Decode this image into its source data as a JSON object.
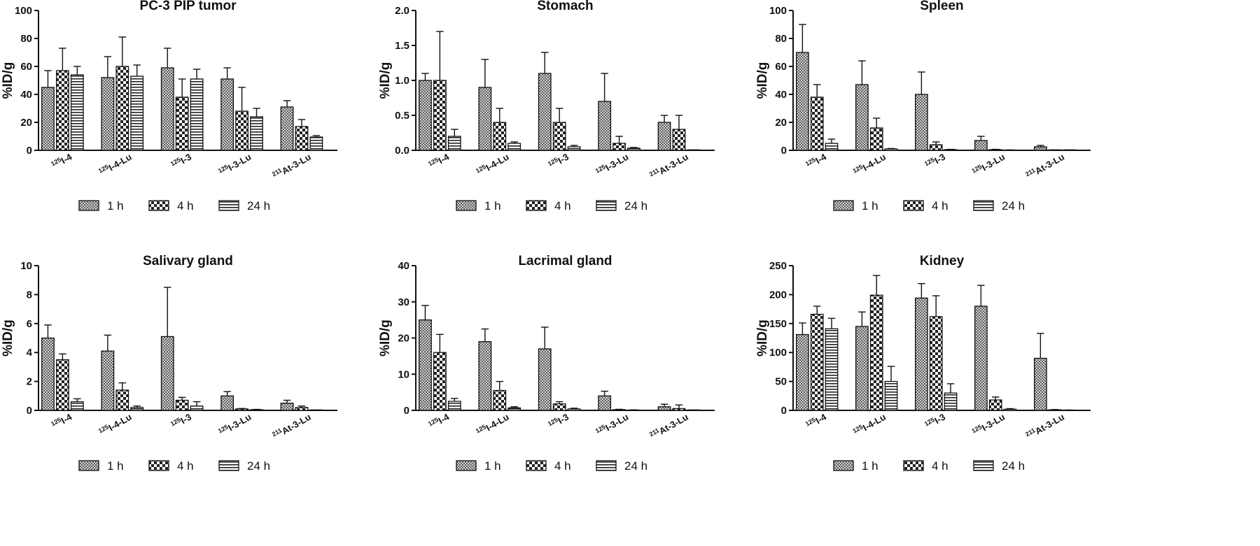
{
  "chart_data": [
    {
      "type": "bar",
      "title": "PC-3 PIP tumor",
      "ylabel": "%ID/g",
      "ylim": [
        0,
        100
      ],
      "yticks": [
        "0",
        "20",
        "40",
        "60",
        "80",
        "100"
      ],
      "categories": [
        {
          "sup": "125",
          "base": "I-4"
        },
        {
          "sup": "125",
          "base": "I-4-Lu"
        },
        {
          "sup": "125",
          "base": "I-3"
        },
        {
          "sup": "125",
          "base": "I-3-Lu"
        },
        {
          "sup": "211",
          "base": "At-3-Lu"
        }
      ],
      "series": [
        {
          "name": "1 h",
          "values": [
            45,
            52,
            59,
            51,
            31
          ],
          "errors": [
            12,
            15,
            14,
            8,
            4.5
          ]
        },
        {
          "name": "4 h",
          "values": [
            57,
            60,
            38,
            28,
            17
          ],
          "errors": [
            16,
            21,
            13,
            17,
            5
          ]
        },
        {
          "name": "24 h",
          "values": [
            54,
            53,
            51,
            24,
            9.5
          ],
          "errors": [
            6,
            8,
            7,
            6,
            1
          ]
        }
      ],
      "legend": "bottom"
    },
    {
      "type": "bar",
      "title": "Stomach",
      "ylabel": "%ID/g",
      "ylim": [
        0,
        2
      ],
      "yticks": [
        "0.0",
        "0.5",
        "1.0",
        "1.5",
        "2.0"
      ],
      "categories": [
        {
          "sup": "125",
          "base": "I-4"
        },
        {
          "sup": "125",
          "base": "I-4-Lu"
        },
        {
          "sup": "125",
          "base": "I-3"
        },
        {
          "sup": "125",
          "base": "I-3-Lu"
        },
        {
          "sup": "211",
          "base": "At-3-Lu"
        }
      ],
      "series": [
        {
          "name": "1 h",
          "values": [
            1.0,
            0.9,
            1.1,
            0.7,
            0.4
          ],
          "errors": [
            0.1,
            0.4,
            0.3,
            0.4,
            0.1
          ]
        },
        {
          "name": "4 h",
          "values": [
            1.0,
            0.4,
            0.4,
            0.1,
            0.3
          ],
          "errors": [
            0.7,
            0.2,
            0.2,
            0.1,
            0.2
          ]
        },
        {
          "name": "24 h",
          "values": [
            0.2,
            0.1,
            0.05,
            0.03,
            0
          ],
          "errors": [
            0.1,
            0.02,
            0.02,
            0.01,
            0
          ]
        }
      ],
      "legend": "bottom"
    },
    {
      "type": "bar",
      "title": "Spleen",
      "ylabel": "%ID/g",
      "ylim": [
        0,
        100
      ],
      "yticks": [
        "0",
        "20",
        "40",
        "60",
        "80",
        "100"
      ],
      "categories": [
        {
          "sup": "125",
          "base": "I-4"
        },
        {
          "sup": "125",
          "base": "I-4-Lu"
        },
        {
          "sup": "125",
          "base": "I-3"
        },
        {
          "sup": "125",
          "base": "I-3-Lu"
        },
        {
          "sup": "211",
          "base": "At-3-Lu"
        }
      ],
      "series": [
        {
          "name": "1 h",
          "values": [
            70,
            47,
            40,
            7,
            2.5
          ],
          "errors": [
            20,
            17,
            16,
            3,
            1
          ]
        },
        {
          "name": "4 h",
          "values": [
            38,
            16,
            4,
            0.5,
            0
          ],
          "errors": [
            9,
            7,
            2,
            0.2,
            0
          ]
        },
        {
          "name": "24 h",
          "values": [
            5,
            1,
            0.5,
            0.2,
            0
          ],
          "errors": [
            3,
            0.3,
            0.2,
            0.1,
            0
          ]
        }
      ],
      "legend": "bottom"
    },
    {
      "type": "bar",
      "title": "Salivary gland",
      "ylabel": "%ID/g",
      "ylim": [
        0,
        10
      ],
      "yticks": [
        "0",
        "2",
        "4",
        "6",
        "8",
        "10"
      ],
      "categories": [
        {
          "sup": "125",
          "base": "I-4"
        },
        {
          "sup": "125",
          "base": "I-4-Lu"
        },
        {
          "sup": "125",
          "base": "I-3"
        },
        {
          "sup": "125",
          "base": "I-3-Lu"
        },
        {
          "sup": "211",
          "base": "At-3-Lu"
        }
      ],
      "series": [
        {
          "name": "1 h",
          "values": [
            5.0,
            4.1,
            5.1,
            1.0,
            0.5
          ],
          "errors": [
            0.9,
            1.1,
            3.4,
            0.3,
            0.2
          ]
        },
        {
          "name": "4 h",
          "values": [
            3.5,
            1.4,
            0.7,
            0.1,
            0.2
          ],
          "errors": [
            0.4,
            0.5,
            0.2,
            0.03,
            0.1
          ]
        },
        {
          "name": "24 h",
          "values": [
            0.6,
            0.2,
            0.3,
            0.05,
            0
          ],
          "errors": [
            0.2,
            0.1,
            0.3,
            0.02,
            0
          ]
        }
      ],
      "legend": "bottom"
    },
    {
      "type": "bar",
      "title": "Lacrimal gland",
      "ylabel": "%ID/g",
      "ylim": [
        0,
        40
      ],
      "yticks": [
        "0",
        "10",
        "20",
        "30",
        "40"
      ],
      "categories": [
        {
          "sup": "125",
          "base": "I-4"
        },
        {
          "sup": "125",
          "base": "I-4-Lu"
        },
        {
          "sup": "125",
          "base": "I-3"
        },
        {
          "sup": "125",
          "base": "I-3-Lu"
        },
        {
          "sup": "211",
          "base": "At-3-Lu"
        }
      ],
      "series": [
        {
          "name": "1 h",
          "values": [
            25,
            19,
            17,
            4,
            1
          ],
          "errors": [
            4,
            3.5,
            6,
            1.3,
            0.7
          ]
        },
        {
          "name": "4 h",
          "values": [
            16,
            5.5,
            1.8,
            0.2,
            0.5
          ],
          "errors": [
            5,
            2.5,
            0.6,
            0.1,
            1
          ]
        },
        {
          "name": "24 h",
          "values": [
            2.5,
            0.7,
            0.4,
            0.1,
            0
          ],
          "errors": [
            0.8,
            0.3,
            0.2,
            0.05,
            0
          ]
        }
      ],
      "legend": "bottom"
    },
    {
      "type": "bar",
      "title": "Kidney",
      "ylabel": "%ID/g",
      "ylim": [
        0,
        250
      ],
      "yticks": [
        "0",
        "50",
        "100",
        "150",
        "200",
        "250"
      ],
      "categories": [
        {
          "sup": "125",
          "base": "I-4"
        },
        {
          "sup": "125",
          "base": "I-4-Lu"
        },
        {
          "sup": "125",
          "base": "I-3"
        },
        {
          "sup": "125",
          "base": "I-3-Lu"
        },
        {
          "sup": "211",
          "base": "At-3-Lu"
        }
      ],
      "series": [
        {
          "name": "1 h",
          "values": [
            131,
            145,
            194,
            180,
            90
          ],
          "errors": [
            20,
            25,
            25,
            36,
            43
          ]
        },
        {
          "name": "4 h",
          "values": [
            166,
            199,
            162,
            18,
            1
          ],
          "errors": [
            14,
            34,
            36,
            5,
            0.5
          ]
        },
        {
          "name": "24 h",
          "values": [
            141,
            50,
            30,
            2,
            0.5
          ],
          "errors": [
            18,
            26,
            16,
            1,
            0.2
          ]
        }
      ],
      "legend": "bottom"
    }
  ]
}
